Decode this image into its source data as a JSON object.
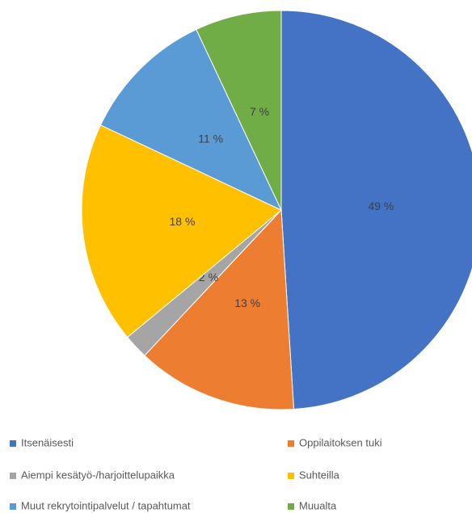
{
  "chart_data": {
    "type": "pie",
    "categories": [
      "Itsenäisesti",
      "Oppilaitoksen tuki",
      "Aiempi kesätyö-/harjoittelupaikka",
      "Suhteilla",
      "Muut rekrytointipalvelut / tapahtumat",
      "Muualta"
    ],
    "values": [
      49,
      13,
      2,
      18,
      11,
      7
    ],
    "value_labels": [
      "49 %",
      "13 %",
      "2 %",
      "18 %",
      "11 %",
      "7 %"
    ],
    "colors": [
      "#4472c4",
      "#ed7d31",
      "#a5a5a5",
      "#ffc000",
      "#5b9bd5",
      "#70ad47"
    ],
    "legend": "bottom"
  }
}
